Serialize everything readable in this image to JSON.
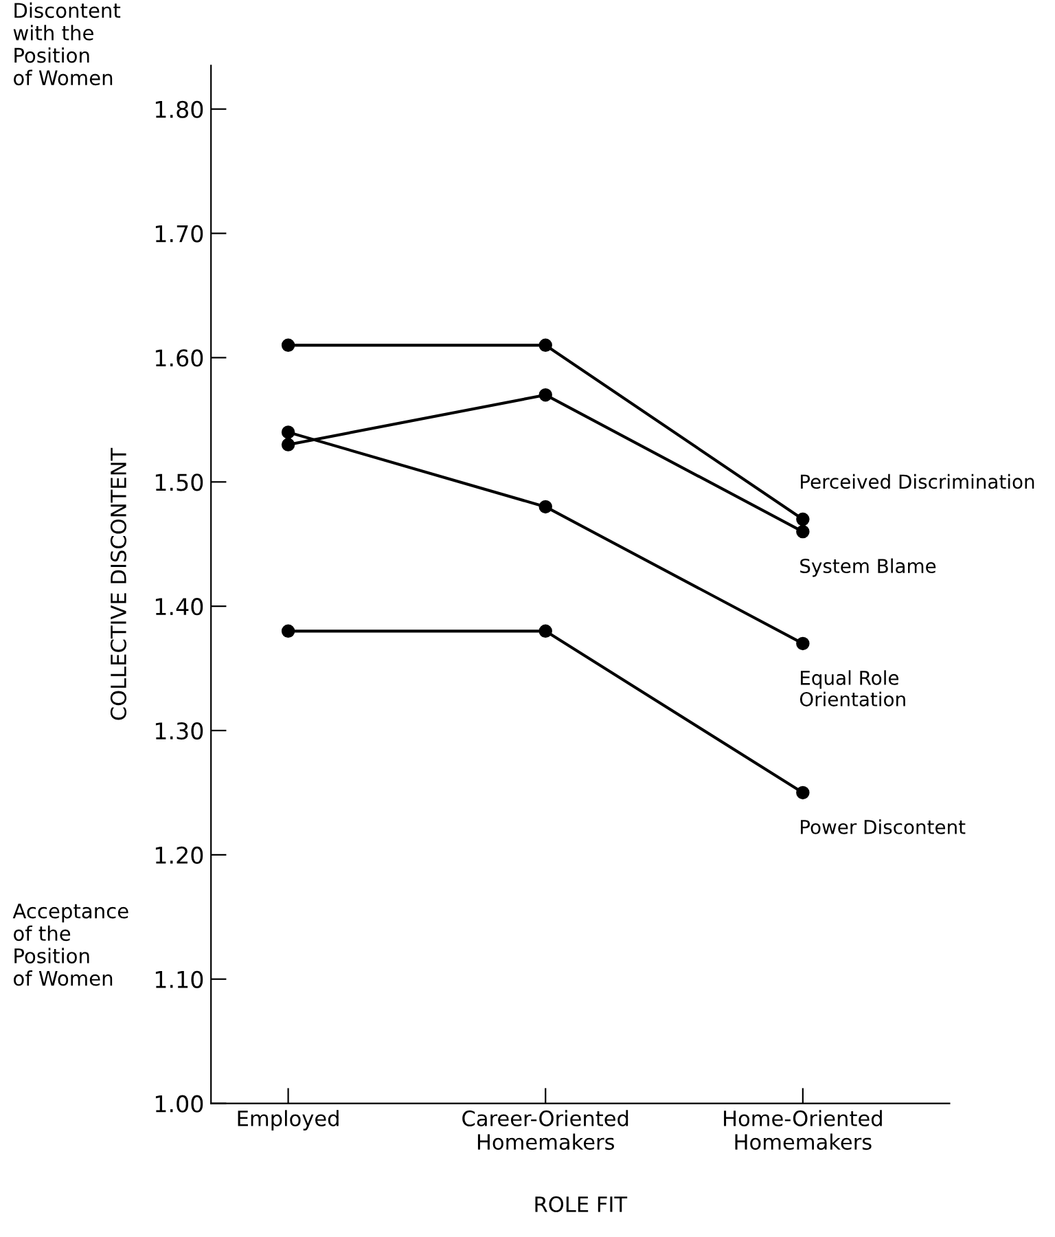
{
  "chart_data": {
    "type": "line",
    "xlabel": "ROLE FIT",
    "ylabel": "COLLECTIVE DISCONTENT",
    "categories": [
      "Employed",
      "Career-Oriented\nHomemakers",
      "Home-Oriented\nHomemakers"
    ],
    "series": [
      {
        "name": "Perceived Discrimination",
        "color": "#000000",
        "values": [
          1.61,
          1.61,
          1.47
        ]
      },
      {
        "name": "System Blame",
        "color": "#000000",
        "values": [
          1.53,
          1.57,
          1.46
        ]
      },
      {
        "name": "Equal Role\nOrientation",
        "color": "#000000",
        "values": [
          1.54,
          1.48,
          1.37
        ]
      },
      {
        "name": "Power Discontent",
        "color": "#000000",
        "values": [
          1.38,
          1.38,
          1.25
        ]
      }
    ],
    "ylim": [
      1.0,
      1.835
    ],
    "yticks": [
      {
        "value": 1.0,
        "label": "1.00"
      },
      {
        "value": 1.1,
        "label": "1.10"
      },
      {
        "value": 1.2,
        "label": "1.20"
      },
      {
        "value": 1.3,
        "label": "1.30"
      },
      {
        "value": 1.4,
        "label": "1.40"
      },
      {
        "value": 1.5,
        "label": "1.50"
      },
      {
        "value": 1.6,
        "label": "1.60"
      },
      {
        "value": 1.7,
        "label": "1.70"
      },
      {
        "value": 1.8,
        "label": "1.80"
      }
    ],
    "annotations": [
      "Discontent\nwith the\nPosition\nof Women",
      "Acceptance\nof the\nPosition\nof Women"
    ],
    "marker": "circle",
    "line_style": "solid",
    "grid": false,
    "legend": false
  }
}
